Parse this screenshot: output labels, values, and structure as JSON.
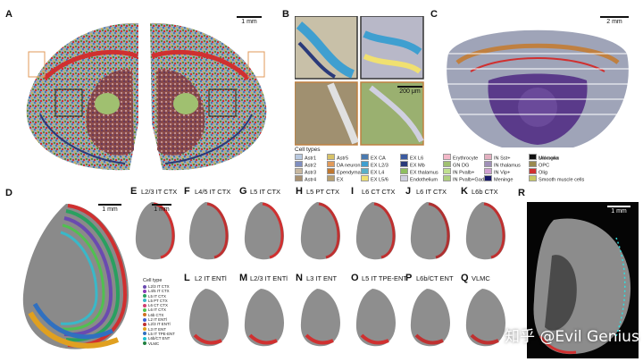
{
  "panels": {
    "A": {
      "label": "A",
      "scale": "1 mm"
    },
    "B": {
      "label": "B",
      "scale": "200 μm"
    },
    "C": {
      "label": "C",
      "scale": "2 mm"
    },
    "D": {
      "label": "D",
      "scale": "1 mm"
    },
    "R": {
      "label": "R",
      "scale": "1 mm"
    }
  },
  "cell_types_title": "Cell types",
  "cell_types": [
    {
      "name": "Astr1",
      "color": "#b9c9e0"
    },
    {
      "name": "Astr2",
      "color": "#7f8fc0"
    },
    {
      "name": "Astr3",
      "color": "#c8b8a0"
    },
    {
      "name": "Astr4",
      "color": "#a89070"
    },
    {
      "name": "Astr5",
      "color": "#d7c268"
    },
    {
      "name": "DA neuron",
      "color": "#e09a5a"
    },
    {
      "name": "Ependymal",
      "color": "#c07830"
    },
    {
      "name": "EX",
      "color": "#b8a070"
    },
    {
      "name": "EX CA",
      "color": "#4a7ab0"
    },
    {
      "name": "EX L2/3",
      "color": "#3f9fd0"
    },
    {
      "name": "EX L4",
      "color": "#5ab0c8"
    },
    {
      "name": "EX L5/6",
      "color": "#f0e070"
    },
    {
      "name": "EX L6",
      "color": "#3a5aa0"
    },
    {
      "name": "EX Mb",
      "color": "#2a3a7a"
    },
    {
      "name": "EX thalamus",
      "color": "#8fbf60"
    },
    {
      "name": "Endothelium",
      "color": "#d0d0e0"
    },
    {
      "name": "Erythrocyte",
      "color": "#f3b8c8"
    },
    {
      "name": "GN DG",
      "color": "#a0c070"
    },
    {
      "name": "IN Pvalb+",
      "color": "#c0e090"
    },
    {
      "name": "IN Pvalb+Gad1+",
      "color": "#b0d080"
    },
    {
      "name": "IN Sst+",
      "color": "#e3b0c0"
    },
    {
      "name": "IN thalamus",
      "color": "#a090b8"
    },
    {
      "name": "IN Vip+",
      "color": "#d0a0d0"
    },
    {
      "name": "Meninge",
      "color": "#1a1a6a"
    },
    {
      "name": "Microglia",
      "color": "#6a6a2a"
    },
    {
      "name": "OPC",
      "color": "#9a8a50"
    },
    {
      "name": "Olig",
      "color": "#d03030"
    },
    {
      "name": "Smooth muscle cells",
      "color": "#c8c860"
    },
    {
      "name": "Unknown",
      "color": "#111111"
    }
  ],
  "small_panels": [
    {
      "letter": "E",
      "title": "L2/3 IT CTX"
    },
    {
      "letter": "F",
      "title": "L4/5 IT CTX"
    },
    {
      "letter": "G",
      "title": "L5 IT CTX"
    },
    {
      "letter": "H",
      "title": "L5 PT CTX"
    },
    {
      "letter": "I",
      "title": "L6 CT CTX"
    },
    {
      "letter": "J",
      "title": "L6 IT CTX"
    },
    {
      "letter": "K",
      "title": "L6b CTX"
    },
    {
      "letter": "L",
      "title": "L2  IT ENTl"
    },
    {
      "letter": "M",
      "title": "L2/3 IT ENTl"
    },
    {
      "letter": "N",
      "title": "L3 IT ENT"
    },
    {
      "letter": "O",
      "title": "L5 IT TPE-ENT"
    },
    {
      "letter": "P",
      "title": "L6b/CT ENT"
    },
    {
      "letter": "Q",
      "title": "VLMC"
    }
  ],
  "small_panel_scale": "1 mm",
  "d_legend_title": "Cell type",
  "d_legend": [
    {
      "name": "L2/3 IT CTX",
      "color": "#6a4ab0"
    },
    {
      "name": "L4/5 IT CTX",
      "color": "#8a3ab8"
    },
    {
      "name": "L5 IT CTX",
      "color": "#2aa060"
    },
    {
      "name": "L5 PT CTX",
      "color": "#3ab8c8"
    },
    {
      "name": "L6 CT CTX",
      "color": "#d04070"
    },
    {
      "name": "L6 IT CTX",
      "color": "#50c050"
    },
    {
      "name": "L6b CTX",
      "color": "#d07020"
    },
    {
      "name": "L2  IT ENTl",
      "color": "#4060d0"
    },
    {
      "name": "L2/3 IT ENTl",
      "color": "#c03030"
    },
    {
      "name": "L3 IT ENT",
      "color": "#e0a020"
    },
    {
      "name": "L5 IT TPE-ENT",
      "color": "#3070c0"
    },
    {
      "name": "L6b/CT ENT",
      "color": "#20c0d0"
    },
    {
      "name": "VLMC",
      "color": "#208040"
    }
  ],
  "watermark": "知乎 @Evil Genius"
}
